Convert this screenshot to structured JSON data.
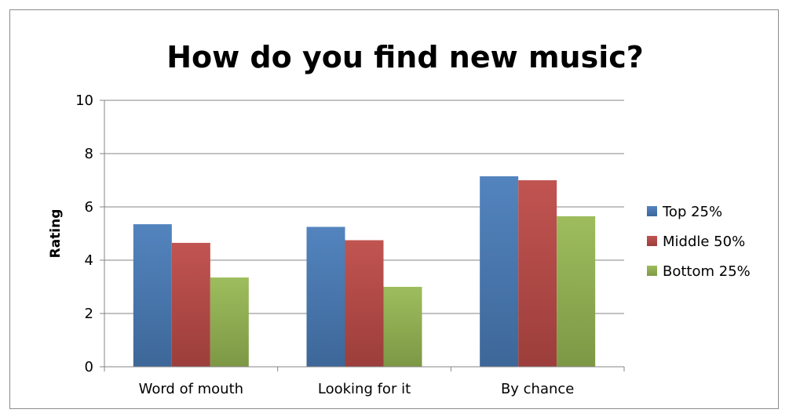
{
  "chart_data": {
    "type": "bar",
    "title": "How do you find new music?",
    "xlabel": "",
    "ylabel": "Rating",
    "ylim": [
      0,
      10
    ],
    "yticks": [
      0,
      2,
      4,
      6,
      8,
      10
    ],
    "grid": true,
    "legend_position": "right",
    "categories": [
      "Word of mouth",
      "Looking for it",
      "By chance"
    ],
    "series": [
      {
        "name": "Top 25%",
        "color": "#4a7ebb",
        "values": [
          5.35,
          5.25,
          7.15
        ]
      },
      {
        "name": "Middle 50%",
        "color": "#be4b48",
        "values": [
          4.65,
          4.75,
          7.0
        ]
      },
      {
        "name": "Bottom 25%",
        "color": "#98b954",
        "values": [
          3.35,
          3.0,
          5.65
        ]
      }
    ]
  }
}
